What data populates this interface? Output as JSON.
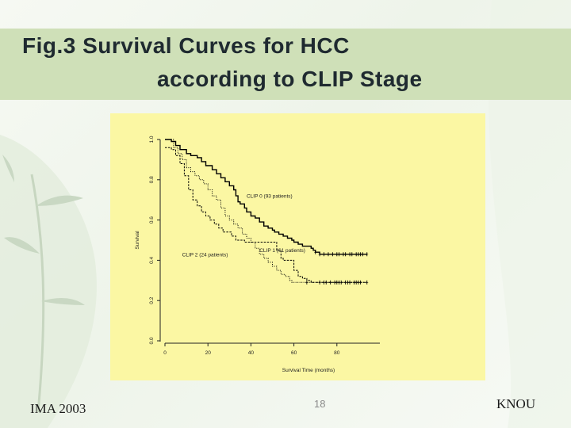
{
  "slide": {
    "title_line1": "Fig.3 Survival Curves for HCC",
    "title_line2": "according to CLIP Stage",
    "footer_left": "IMA 2003",
    "page_number": "18",
    "footer_right": "KNOU"
  },
  "colors": {
    "title_band": "#cfe0b8",
    "chart_panel": "#fbf7a3",
    "series": "#000000"
  },
  "chart_data": {
    "type": "line",
    "title": "",
    "xlabel": "Survival Time (months)",
    "ylabel": "Survival",
    "xlim": [
      0,
      100
    ],
    "ylim": [
      0,
      1.0
    ],
    "x_ticks": [
      0,
      20,
      40,
      60,
      80
    ],
    "y_ticks": [
      0.0,
      0.2,
      0.4,
      0.6,
      0.8,
      1.0
    ],
    "step": true,
    "grid": false,
    "series": [
      {
        "name": "CLIP 0 (93 patients)",
        "style": "solid",
        "points": [
          [
            0,
            1.0
          ],
          [
            3,
            0.99
          ],
          [
            5,
            0.97
          ],
          [
            7,
            0.95
          ],
          [
            10,
            0.93
          ],
          [
            12,
            0.92
          ],
          [
            15,
            0.91
          ],
          [
            17,
            0.89
          ],
          [
            19,
            0.87
          ],
          [
            22,
            0.85
          ],
          [
            24,
            0.83
          ],
          [
            26,
            0.81
          ],
          [
            28,
            0.79
          ],
          [
            30,
            0.77
          ],
          [
            32,
            0.75
          ],
          [
            33,
            0.72
          ],
          [
            34,
            0.69
          ],
          [
            35,
            0.68
          ],
          [
            37,
            0.66
          ],
          [
            38,
            0.64
          ],
          [
            40,
            0.62
          ],
          [
            42,
            0.61
          ],
          [
            44,
            0.59
          ],
          [
            46,
            0.57
          ],
          [
            48,
            0.56
          ],
          [
            50,
            0.55
          ],
          [
            51,
            0.54
          ],
          [
            53,
            0.53
          ],
          [
            55,
            0.52
          ],
          [
            57,
            0.51
          ],
          [
            59,
            0.5
          ],
          [
            60,
            0.49
          ],
          [
            62,
            0.48
          ],
          [
            64,
            0.47
          ],
          [
            66,
            0.47
          ],
          [
            68,
            0.46
          ],
          [
            69,
            0.45
          ],
          [
            70,
            0.44
          ],
          [
            72,
            0.43
          ],
          [
            94,
            0.43
          ]
        ],
        "censored": [
          70,
          72,
          74,
          76,
          78,
          80,
          81,
          83,
          84,
          86,
          87,
          89,
          90,
          91,
          92,
          94
        ]
      },
      {
        "name": "CLIP 1 (61 patients)",
        "style": "dotted",
        "points": [
          [
            0,
            1.0
          ],
          [
            4,
            0.96
          ],
          [
            6,
            0.93
          ],
          [
            8,
            0.9
          ],
          [
            10,
            0.86
          ],
          [
            12,
            0.84
          ],
          [
            14,
            0.82
          ],
          [
            16,
            0.8
          ],
          [
            18,
            0.78
          ],
          [
            20,
            0.75
          ],
          [
            22,
            0.72
          ],
          [
            24,
            0.7
          ],
          [
            26,
            0.66
          ],
          [
            28,
            0.62
          ],
          [
            30,
            0.6
          ],
          [
            32,
            0.58
          ],
          [
            34,
            0.56
          ],
          [
            36,
            0.53
          ],
          [
            38,
            0.51
          ],
          [
            40,
            0.49
          ],
          [
            42,
            0.46
          ],
          [
            44,
            0.43
          ],
          [
            46,
            0.41
          ],
          [
            48,
            0.39
          ],
          [
            50,
            0.37
          ],
          [
            52,
            0.35
          ],
          [
            54,
            0.33
          ],
          [
            56,
            0.32
          ],
          [
            58,
            0.3
          ],
          [
            59,
            0.29
          ],
          [
            60,
            0.29
          ],
          [
            62,
            0.29
          ],
          [
            70,
            0.29
          ],
          [
            94,
            0.29
          ]
        ],
        "censored": [
          66,
          72,
          74,
          75,
          77,
          79,
          80,
          81,
          82,
          84,
          85,
          86,
          88,
          89,
          90,
          91,
          94
        ]
      },
      {
        "name": "CLIP 2 (24 patients)",
        "style": "dashed",
        "points": [
          [
            0,
            0.96
          ],
          [
            3,
            0.95
          ],
          [
            5,
            0.92
          ],
          [
            7,
            0.88
          ],
          [
            9,
            0.82
          ],
          [
            11,
            0.75
          ],
          [
            13,
            0.7
          ],
          [
            15,
            0.67
          ],
          [
            17,
            0.64
          ],
          [
            19,
            0.62
          ],
          [
            21,
            0.6
          ],
          [
            23,
            0.58
          ],
          [
            25,
            0.56
          ],
          [
            27,
            0.54
          ],
          [
            29,
            0.54
          ],
          [
            31,
            0.52
          ],
          [
            33,
            0.5
          ],
          [
            35,
            0.5
          ],
          [
            37,
            0.49
          ],
          [
            39,
            0.49
          ],
          [
            41,
            0.49
          ],
          [
            43,
            0.49
          ],
          [
            50,
            0.49
          ],
          [
            52,
            0.45
          ],
          [
            54,
            0.41
          ],
          [
            55,
            0.4
          ],
          [
            56,
            0.4
          ],
          [
            60,
            0.35
          ],
          [
            62,
            0.32
          ],
          [
            64,
            0.31
          ],
          [
            66,
            0.3
          ],
          [
            68,
            0.29
          ],
          [
            94,
            0.29
          ]
        ],
        "censored": []
      }
    ],
    "annotations": [
      {
        "text": "CLIP 0 (93 patients)",
        "x": 38,
        "y": 0.71
      },
      {
        "text": "CLIP 1 (61 patients)",
        "x": 44,
        "y": 0.44
      },
      {
        "text": "CLIP 2 (24 patients)",
        "x": 8,
        "y": 0.42
      }
    ]
  }
}
